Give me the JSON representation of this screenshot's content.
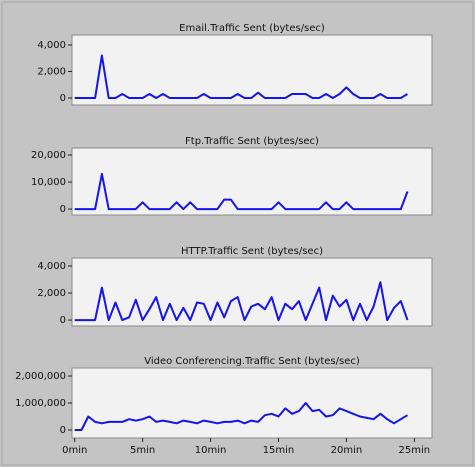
{
  "chart_data": [
    {
      "type": "line",
      "title": "Email.Traffic Sent (bytes/sec)",
      "color": "#1414f0",
      "x": [
        0,
        0.5,
        1,
        1.5,
        2,
        2.5,
        3,
        3.5,
        4,
        4.5,
        5,
        5.5,
        6,
        6.5,
        7,
        7.5,
        8,
        8.5,
        9,
        9.5,
        10,
        10.5,
        11,
        11.5,
        12,
        12.5,
        13,
        13.5,
        14,
        14.5,
        15,
        15.5,
        16,
        16.5,
        17,
        17.5,
        18,
        18.5,
        19,
        19.5,
        20,
        20.5,
        21,
        21.5,
        22,
        22.5,
        23,
        23.5,
        24,
        24.5
      ],
      "values": [
        0,
        0,
        0,
        0,
        3200,
        0,
        0,
        300,
        0,
        0,
        0,
        300,
        0,
        300,
        0,
        0,
        0,
        0,
        0,
        300,
        0,
        0,
        0,
        0,
        300,
        0,
        0,
        400,
        0,
        0,
        0,
        0,
        300,
        300,
        300,
        0,
        0,
        300,
        0,
        300,
        800,
        300,
        0,
        0,
        0,
        300,
        0,
        0,
        0,
        300
      ],
      "xlim": [
        -0.2,
        26.3
      ],
      "ylim": [
        -530,
        4750
      ],
      "yticks": [
        0,
        {
          "value": 2000,
          "label": "2,000"
        },
        {
          "value": 4000,
          "label": "4,000"
        }
      ]
    },
    {
      "type": "line",
      "title": "Ftp.Traffic Sent (bytes/sec)",
      "color": "#1414f0",
      "x": [
        0,
        0.5,
        1,
        1.5,
        2,
        2.5,
        3,
        3.5,
        4,
        4.5,
        5,
        5.5,
        6,
        6.5,
        7,
        7.5,
        8,
        8.5,
        9,
        9.5,
        10,
        10.5,
        11,
        11.5,
        12,
        12.5,
        13,
        13.5,
        14,
        14.5,
        15,
        15.5,
        16,
        16.5,
        17,
        17.5,
        18,
        18.5,
        19,
        19.5,
        20,
        20.5,
        21,
        21.5,
        22,
        22.5,
        23,
        23.5,
        24,
        24.5
      ],
      "values": [
        0,
        0,
        0,
        0,
        13000,
        0,
        0,
        0,
        0,
        0,
        2500,
        0,
        0,
        0,
        0,
        2500,
        0,
        2500,
        0,
        0,
        0,
        0,
        3500,
        3500,
        0,
        0,
        0,
        0,
        0,
        0,
        2500,
        0,
        0,
        0,
        0,
        0,
        0,
        2500,
        0,
        0,
        2500,
        0,
        0,
        0,
        0,
        0,
        0,
        0,
        0,
        6500
      ],
      "xlim": [
        -0.2,
        26.3
      ],
      "ylim": [
        -2200,
        22600
      ],
      "yticks": [
        0,
        {
          "value": 10000,
          "label": "10,000"
        },
        {
          "value": 20000,
          "label": "20,000"
        }
      ]
    },
    {
      "type": "line",
      "title": "HTTP.Traffic Sent (bytes/sec)",
      "color": "#1414f0",
      "x": [
        0,
        0.5,
        1,
        1.5,
        2,
        2.5,
        3,
        3.5,
        4,
        4.5,
        5,
        5.5,
        6,
        6.5,
        7,
        7.5,
        8,
        8.5,
        9,
        9.5,
        10,
        10.5,
        11,
        11.5,
        12,
        12.5,
        13,
        13.5,
        14,
        14.5,
        15,
        15.5,
        16,
        16.5,
        17,
        17.5,
        18,
        18.5,
        19,
        19.5,
        20,
        20.5,
        21,
        21.5,
        22,
        22.5,
        23,
        23.5,
        24,
        24.5
      ],
      "values": [
        0,
        0,
        0,
        0,
        2400,
        0,
        1300,
        0,
        200,
        1500,
        0,
        800,
        1700,
        0,
        1200,
        0,
        900,
        0,
        1300,
        1200,
        0,
        1300,
        200,
        1400,
        1700,
        0,
        1000,
        1200,
        800,
        1700,
        0,
        1200,
        800,
        1400,
        0,
        1200,
        2400,
        0,
        1800,
        1000,
        1500,
        0,
        1200,
        0,
        1000,
        2800,
        0,
        900,
        1400,
        0
      ],
      "xlim": [
        -0.2,
        26.3
      ],
      "ylim": [
        -440,
        4590
      ],
      "yticks": [
        0,
        {
          "value": 2000,
          "label": "2,000"
        },
        {
          "value": 4000,
          "label": "4,000"
        }
      ]
    },
    {
      "type": "line",
      "title": "Video Conferencing.Traffic Sent (bytes/sec)",
      "color": "#1414f0",
      "x": [
        0,
        0.5,
        1,
        1.5,
        2,
        2.5,
        3,
        3.5,
        4,
        4.5,
        5,
        5.5,
        6,
        6.5,
        7,
        7.5,
        8,
        8.5,
        9,
        9.5,
        10,
        10.5,
        11,
        11.5,
        12,
        12.5,
        13,
        13.5,
        14,
        14.5,
        15,
        15.5,
        16,
        16.5,
        17,
        17.5,
        18,
        18.5,
        19,
        19.5,
        20,
        20.5,
        21,
        21.5,
        22,
        22.5,
        23,
        23.5,
        24,
        24.5
      ],
      "values": [
        0,
        0,
        500000,
        300000,
        250000,
        300000,
        300000,
        300000,
        400000,
        350000,
        400000,
        500000,
        300000,
        350000,
        300000,
        250000,
        350000,
        300000,
        250000,
        350000,
        300000,
        250000,
        300000,
        300000,
        350000,
        250000,
        350000,
        300000,
        550000,
        600000,
        500000,
        800000,
        600000,
        700000,
        1000000,
        700000,
        750000,
        500000,
        550000,
        800000,
        700000,
        600000,
        500000,
        450000,
        400000,
        600000,
        400000,
        250000,
        400000,
        550000
      ],
      "xlim": [
        -0.2,
        26.3
      ],
      "ylim": [
        -296000,
        2296000
      ],
      "yticks": [
        0,
        {
          "value": 1000000,
          "label": "1,000,000"
        },
        {
          "value": 2000000,
          "label": "2,000,000"
        }
      ],
      "xticks": [
        {
          "value": 0,
          "label": "0min"
        },
        {
          "value": 5,
          "label": "5min"
        },
        {
          "value": 10,
          "label": "10min"
        },
        {
          "value": 15,
          "label": "15min"
        },
        {
          "value": 20,
          "label": "20min"
        },
        {
          "value": 25,
          "label": "25min"
        }
      ]
    }
  ]
}
